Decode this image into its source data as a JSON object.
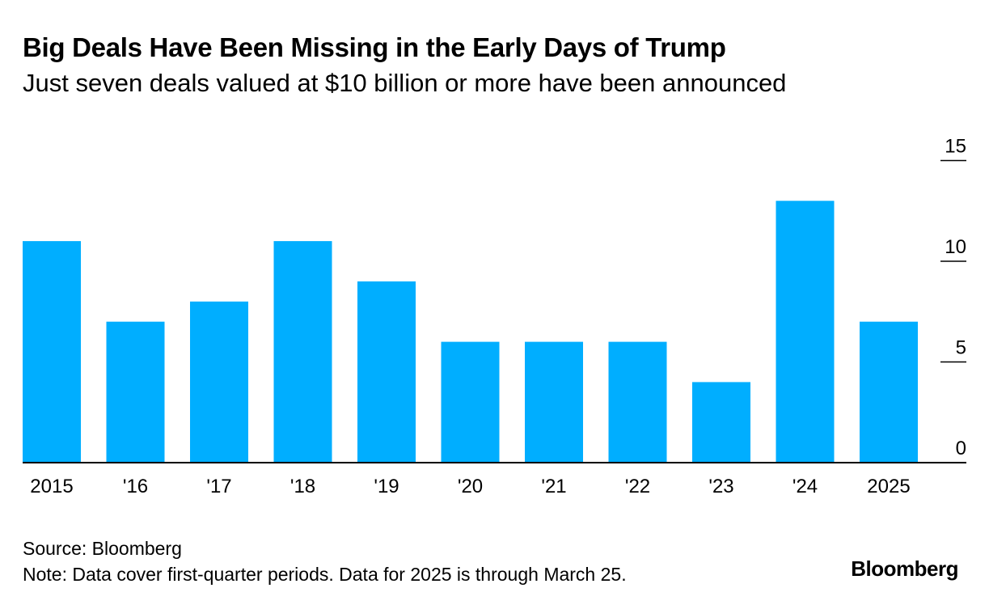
{
  "title": "Big Deals Have Been Missing in the Early Days of Trump",
  "subtitle": "Just seven deals valued at $10 billion or more have been announced",
  "footer": {
    "source": "Source: Bloomberg",
    "note": "Note: Data cover first-quarter periods. Data for 2025 is through March 25."
  },
  "brand": "Bloomberg",
  "colors": {
    "bar": "#00aeff",
    "axis": "#000000",
    "text": "#000000"
  },
  "chart_data": {
    "type": "bar",
    "categories": [
      "2015",
      "'16",
      "'17",
      "'18",
      "'19",
      "'20",
      "'21",
      "'22",
      "'23",
      "'24",
      "2025"
    ],
    "values": [
      11,
      7,
      8,
      11,
      9,
      6,
      6,
      6,
      4,
      13,
      7
    ],
    "title": "Big Deals Have Been Missing in the Early Days of Trump",
    "subtitle": "Just seven deals valued at $10 billion or more have been announced",
    "ylim": [
      0,
      15
    ],
    "yticks": [
      0,
      5,
      10,
      15
    ],
    "y_axis_position": "right",
    "grid": false,
    "legend": "none"
  }
}
